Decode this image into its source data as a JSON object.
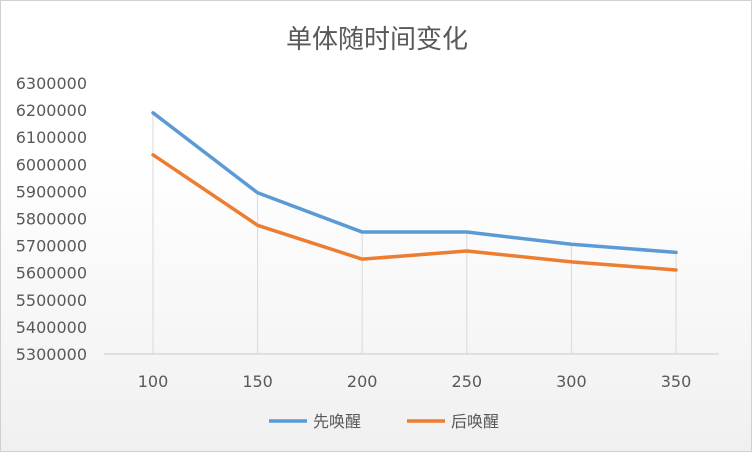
{
  "chart_data": {
    "type": "line",
    "title": "单体随时间变化",
    "x": [
      100,
      150,
      200,
      250,
      300,
      350
    ],
    "categories": [
      "100",
      "150",
      "200",
      "250",
      "300",
      "350"
    ],
    "ylim": [
      5300000,
      6300000
    ],
    "yticks": [
      5300000,
      5400000,
      5500000,
      5600000,
      5700000,
      5800000,
      5900000,
      6000000,
      6100000,
      6200000,
      6300000
    ],
    "grid": "vertical lines at categories",
    "legend": "bottom",
    "series": [
      {
        "name": "先唤醒",
        "color": "#5b9bd5",
        "values": [
          6190000,
          5895000,
          5750000,
          5750000,
          5705000,
          5675000
        ]
      },
      {
        "name": "后唤醒",
        "color": "#ed7d31",
        "values": [
          6035000,
          5775000,
          5650000,
          5680000,
          5640000,
          5610000
        ]
      }
    ]
  }
}
